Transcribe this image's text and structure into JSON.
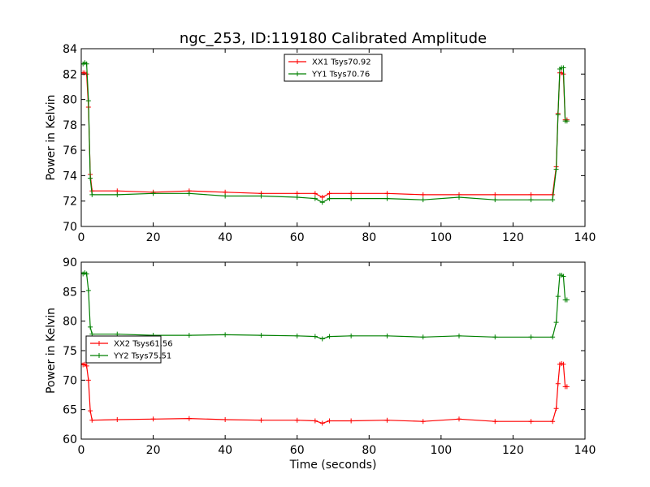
{
  "figure": {
    "title": "ngc_253, ID:119180 Calibrated Amplitude"
  },
  "chart_data": [
    {
      "type": "line",
      "xlabel": "",
      "ylabel": "Power in Kelvin",
      "xlim": [
        0,
        140
      ],
      "ylim": [
        70,
        84
      ],
      "xticks": [
        0,
        20,
        40,
        60,
        80,
        100,
        120,
        140
      ],
      "yticks": [
        70,
        72,
        74,
        76,
        78,
        80,
        82,
        84
      ],
      "grid": false,
      "legend_position": "top-center",
      "series": [
        {
          "name": "XX1 Tsys70.92",
          "color": "#ff0000",
          "marker": "plus",
          "x": [
            0,
            0.5,
            1,
            1.5,
            2,
            2.5,
            3,
            10,
            20,
            30,
            40,
            50,
            60,
            65,
            67,
            69,
            75,
            85,
            95,
            105,
            115,
            125,
            131,
            132,
            132.5,
            133,
            133.5,
            134,
            134.5,
            135
          ],
          "y": [
            82.1,
            82.1,
            82.1,
            82.0,
            79.4,
            74.1,
            72.8,
            72.8,
            72.7,
            72.8,
            72.7,
            72.6,
            72.6,
            72.6,
            72.3,
            72.6,
            72.6,
            72.6,
            72.5,
            72.5,
            72.5,
            72.5,
            72.5,
            74.7,
            78.9,
            82.1,
            82.1,
            82.0,
            78.4,
            78.4
          ]
        },
        {
          "name": "YY1 Tsys70.76",
          "color": "#008000",
          "marker": "plus",
          "x": [
            0,
            0.5,
            1,
            1.5,
            2,
            2.5,
            3,
            10,
            20,
            30,
            40,
            50,
            60,
            65,
            67,
            69,
            75,
            85,
            95,
            105,
            115,
            125,
            131,
            132,
            132.5,
            133,
            133.5,
            134,
            134.5,
            135
          ],
          "y": [
            82.8,
            82.8,
            82.9,
            82.8,
            79.9,
            73.8,
            72.5,
            72.5,
            72.6,
            72.6,
            72.4,
            72.4,
            72.3,
            72.2,
            71.9,
            72.2,
            72.2,
            72.2,
            72.1,
            72.3,
            72.1,
            72.1,
            72.1,
            74.5,
            78.8,
            82.4,
            82.5,
            82.5,
            78.3,
            78.3
          ]
        }
      ]
    },
    {
      "type": "line",
      "xlabel": "Time (seconds)",
      "ylabel": "Power in Kelvin",
      "xlim": [
        0,
        140
      ],
      "ylim": [
        60,
        90
      ],
      "xticks": [
        0,
        20,
        40,
        60,
        80,
        100,
        120,
        140
      ],
      "yticks": [
        60,
        65,
        70,
        75,
        80,
        85,
        90
      ],
      "grid": false,
      "legend_position": "center-left",
      "series": [
        {
          "name": "XX2 Tsys61.56",
          "color": "#ff0000",
          "marker": "plus",
          "x": [
            0,
            0.5,
            1,
            1.5,
            2,
            2.5,
            3,
            10,
            20,
            30,
            40,
            50,
            60,
            65,
            67,
            69,
            75,
            85,
            95,
            105,
            115,
            125,
            131,
            132,
            132.5,
            133,
            133.5,
            134,
            134.5,
            135
          ],
          "y": [
            72.8,
            72.6,
            72.7,
            72.4,
            70.0,
            64.8,
            63.2,
            63.3,
            63.4,
            63.5,
            63.3,
            63.2,
            63.2,
            63.1,
            62.7,
            63.1,
            63.1,
            63.2,
            63.0,
            63.4,
            63.0,
            63.0,
            63.0,
            65.2,
            69.4,
            72.7,
            72.8,
            72.7,
            68.9,
            68.9
          ]
        },
        {
          "name": "YY2 Tsys75.51",
          "color": "#008000",
          "marker": "plus",
          "x": [
            0,
            0.5,
            1,
            1.5,
            2,
            2.5,
            3,
            10,
            20,
            30,
            40,
            50,
            60,
            65,
            67,
            69,
            75,
            85,
            95,
            105,
            115,
            125,
            131,
            132,
            132.5,
            133,
            133.5,
            134,
            134.5,
            135
          ],
          "y": [
            88.2,
            88.0,
            88.2,
            88.0,
            85.2,
            79.0,
            77.8,
            77.8,
            77.6,
            77.6,
            77.7,
            77.6,
            77.5,
            77.4,
            77.0,
            77.4,
            77.5,
            77.5,
            77.3,
            77.5,
            77.3,
            77.3,
            77.3,
            79.8,
            84.2,
            87.8,
            87.8,
            87.6,
            83.6,
            83.6
          ]
        }
      ]
    }
  ]
}
